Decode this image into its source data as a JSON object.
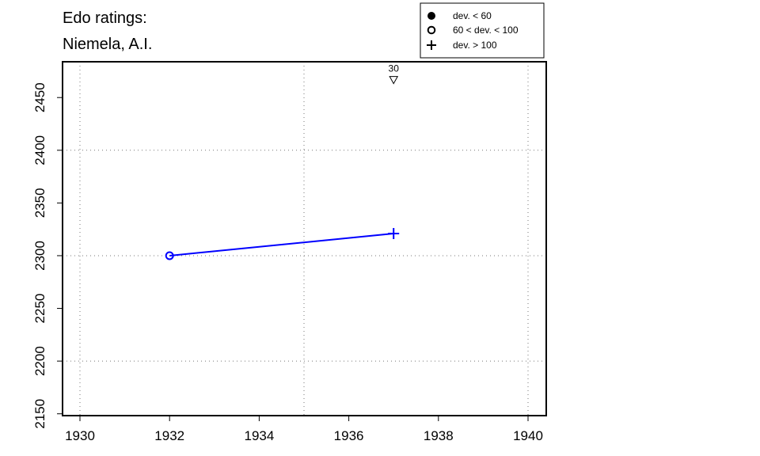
{
  "chart_data": {
    "type": "line",
    "title": [
      "Edo ratings:",
      "Niemela, A.I."
    ],
    "xlabel": "",
    "ylabel": "",
    "xlim": [
      1929.6,
      1940.4
    ],
    "ylim": [
      2148,
      2485
    ],
    "x_ticks": [
      1930,
      1932,
      1934,
      1936,
      1938,
      1940
    ],
    "y_ticks": [
      2150,
      2200,
      2250,
      2300,
      2350,
      2400,
      2450
    ],
    "grid": {
      "x": [
        1930,
        1935,
        1940
      ],
      "y": [
        2200,
        2300,
        2400
      ],
      "style": "dotted"
    },
    "series": [
      {
        "color": "#0000ff",
        "points": [
          {
            "x": 1932,
            "y": 2300,
            "marker": "open-circle"
          },
          {
            "x": 1937,
            "y": 2321,
            "marker": "plus"
          }
        ]
      }
    ],
    "annotations": [
      {
        "x": 1937,
        "y": 2467,
        "marker": "down-triangle",
        "label": "30"
      }
    ],
    "legend": {
      "position": "top-right",
      "entries": [
        {
          "marker": "filled-circle",
          "label": "dev. < 60"
        },
        {
          "marker": "open-circle",
          "label": "60 < dev. < 100"
        },
        {
          "marker": "plus",
          "label": "dev. > 100"
        }
      ]
    }
  }
}
